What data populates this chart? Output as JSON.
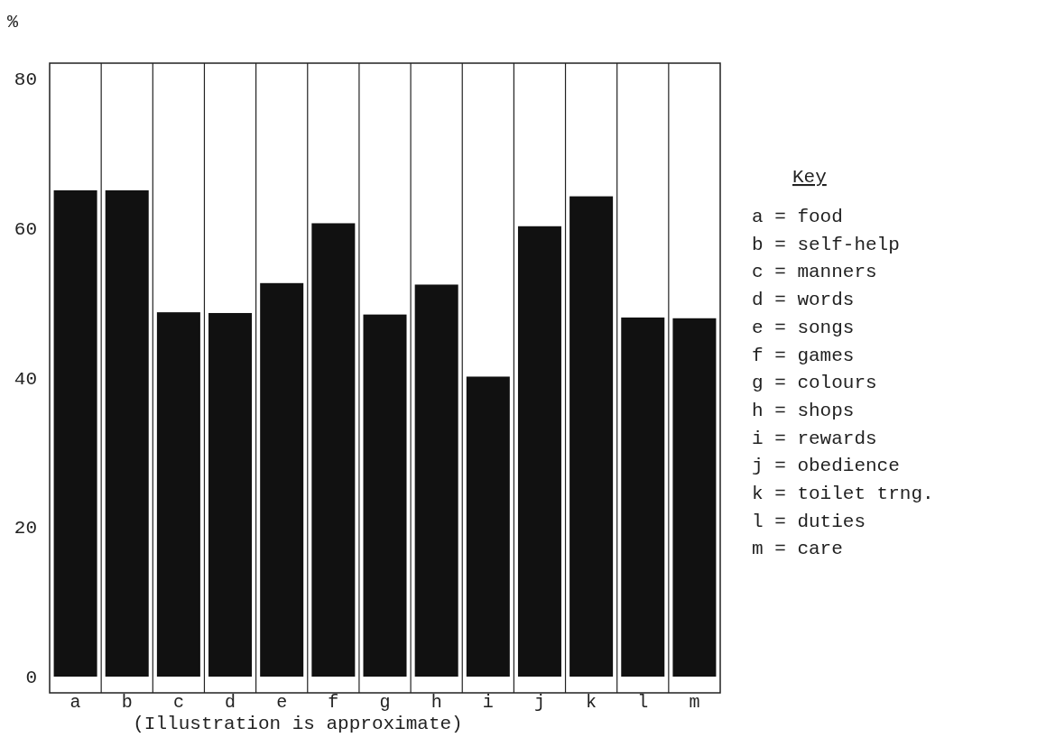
{
  "chart_data": {
    "type": "bar",
    "ylabel": "%",
    "categories": [
      "a",
      "b",
      "c",
      "d",
      "e",
      "f",
      "g",
      "h",
      "i",
      "j",
      "k",
      "l",
      "m"
    ],
    "values": [
      65,
      65,
      48.7,
      48.6,
      52.6,
      60.6,
      48.4,
      52.4,
      40.1,
      60.2,
      64.2,
      48,
      47.9
    ],
    "color": "#111111",
    "ylim": [
      0,
      82
    ],
    "yticks": [
      0,
      20,
      40,
      60,
      80
    ],
    "grid": "x",
    "annotations": [
      "Key",
      "a = food",
      "b = self-help",
      "c = manners",
      "d = words",
      "e = songs",
      "f = games",
      "g = colours",
      "h = shops",
      "i = rewards",
      "j = obedience",
      "k = toilet trng.",
      "l = duties",
      "m = care",
      "(Illustration is approximate)"
    ]
  }
}
